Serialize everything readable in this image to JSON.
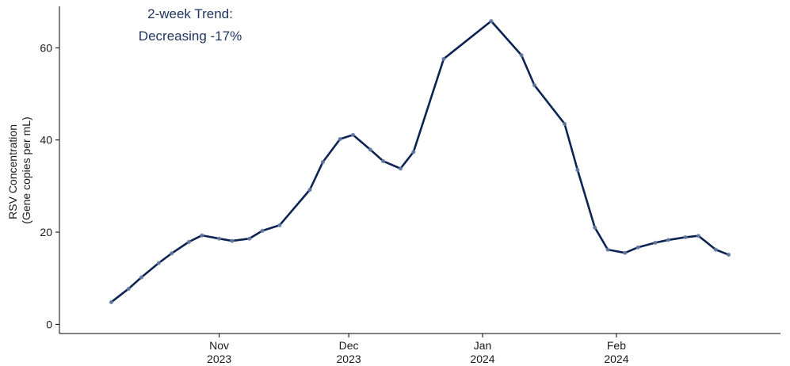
{
  "chart_data": {
    "type": "line",
    "ylabel_lines": [
      "RSV Concentration",
      "(Gene copies per mL)"
    ],
    "annotation_lines": [
      "2-week Trend:",
      "Decreasing -17%"
    ],
    "colors": {
      "line": "#0d2452",
      "point": "#6b7fa6",
      "annotation": "#1f3560"
    },
    "ylim": [
      -2,
      69
    ],
    "yticks": [
      0,
      20,
      40,
      60
    ],
    "xlim": [
      "2023-09-25",
      "2024-03-10"
    ],
    "xticks": [
      {
        "date": "2023-11-01",
        "month": "Nov",
        "year": "2023"
      },
      {
        "date": "2023-12-01",
        "month": "Dec",
        "year": "2023"
      },
      {
        "date": "2024-01-01",
        "month": "Jan",
        "year": "2024"
      },
      {
        "date": "2024-02-01",
        "month": "Feb",
        "year": "2024"
      }
    ],
    "grid": false,
    "series": [
      {
        "points": [
          {
            "x": "2023-10-07",
            "y": 4.8
          },
          {
            "x": "2023-10-11",
            "y": 7.7
          },
          {
            "x": "2023-10-14",
            "y": 10.2
          },
          {
            "x": "2023-10-18",
            "y": 13.3
          },
          {
            "x": "2023-10-21",
            "y": 15.4
          },
          {
            "x": "2023-10-25",
            "y": 17.9
          },
          {
            "x": "2023-10-28",
            "y": 19.3
          },
          {
            "x": "2023-11-01",
            "y": 18.6
          },
          {
            "x": "2023-11-04",
            "y": 18.1
          },
          {
            "x": "2023-11-08",
            "y": 18.6
          },
          {
            "x": "2023-11-11",
            "y": 20.3
          },
          {
            "x": "2023-11-15",
            "y": 21.5
          },
          {
            "x": "2023-11-22",
            "y": 29.2
          },
          {
            "x": "2023-11-25",
            "y": 35.2
          },
          {
            "x": "2023-11-29",
            "y": 40.2
          },
          {
            "x": "2023-12-02",
            "y": 41.1
          },
          {
            "x": "2023-12-06",
            "y": 37.9
          },
          {
            "x": "2023-12-09",
            "y": 35.4
          },
          {
            "x": "2023-12-13",
            "y": 33.8
          },
          {
            "x": "2023-12-16",
            "y": 37.4
          },
          {
            "x": "2023-12-23",
            "y": 57.6
          },
          {
            "x": "2024-01-03",
            "y": 65.8
          },
          {
            "x": "2024-01-10",
            "y": 58.4
          },
          {
            "x": "2024-01-13",
            "y": 51.9
          },
          {
            "x": "2024-01-20",
            "y": 43.5
          },
          {
            "x": "2024-01-23",
            "y": 33.5
          },
          {
            "x": "2024-01-27",
            "y": 21.0
          },
          {
            "x": "2024-01-30",
            "y": 16.2
          },
          {
            "x": "2024-02-03",
            "y": 15.5
          },
          {
            "x": "2024-02-06",
            "y": 16.7
          },
          {
            "x": "2024-02-10",
            "y": 17.7
          },
          {
            "x": "2024-02-13",
            "y": 18.3
          },
          {
            "x": "2024-02-17",
            "y": 18.9
          },
          {
            "x": "2024-02-20",
            "y": 19.2
          },
          {
            "x": "2024-02-24",
            "y": 16.2
          },
          {
            "x": "2024-02-27",
            "y": 15.1
          }
        ]
      }
    ]
  }
}
